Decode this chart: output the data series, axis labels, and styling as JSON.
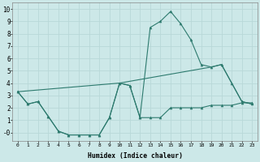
{
  "xlabel": "Humidex (Indice chaleur)",
  "bg_color": "#cce8e8",
  "grid_color": "#b8d8d8",
  "line_color": "#2d7a6e",
  "xlim": [
    -0.5,
    23.5
  ],
  "ylim": [
    -0.7,
    10.5
  ],
  "xticks": [
    0,
    1,
    2,
    3,
    4,
    5,
    6,
    7,
    8,
    9,
    10,
    11,
    12,
    13,
    14,
    15,
    16,
    17,
    18,
    19,
    20,
    21,
    22,
    23
  ],
  "yticks": [
    0,
    1,
    2,
    3,
    4,
    5,
    6,
    7,
    8,
    9,
    10
  ],
  "ytick_labels": [
    "-0",
    "1",
    "2",
    "3",
    "4",
    "5",
    "6",
    "7",
    "8",
    "9",
    "10"
  ],
  "series1_x": [
    0,
    1,
    2,
    3,
    4,
    5,
    6,
    7,
    8,
    9,
    10,
    11,
    12,
    13,
    14,
    15,
    16,
    17,
    18,
    19,
    20,
    21,
    22,
    23
  ],
  "series1_y": [
    3.3,
    2.3,
    2.5,
    1.3,
    0.1,
    -0.2,
    -0.2,
    -0.2,
    -0.2,
    1.2,
    4.0,
    3.8,
    1.2,
    1.2,
    1.2,
    2.0,
    2.0,
    2.0,
    2.0,
    2.2,
    2.2,
    2.2,
    2.4,
    2.4
  ],
  "series2_x": [
    0,
    1,
    2,
    3,
    4,
    5,
    6,
    7,
    8,
    9,
    10,
    11,
    12,
    13,
    14,
    15,
    16,
    17,
    18,
    19,
    20,
    21,
    22,
    23
  ],
  "series2_y": [
    3.3,
    2.3,
    2.5,
    1.3,
    0.1,
    -0.2,
    -0.2,
    -0.2,
    -0.2,
    1.2,
    4.0,
    3.8,
    1.2,
    8.5,
    9.0,
    9.8,
    8.8,
    7.5,
    5.5,
    5.3,
    5.5,
    4.0,
    2.5,
    2.3
  ],
  "series3_x": [
    0,
    10,
    19,
    20,
    21,
    22,
    23
  ],
  "series3_y": [
    3.3,
    4.0,
    5.3,
    5.5,
    4.0,
    2.5,
    2.3
  ]
}
